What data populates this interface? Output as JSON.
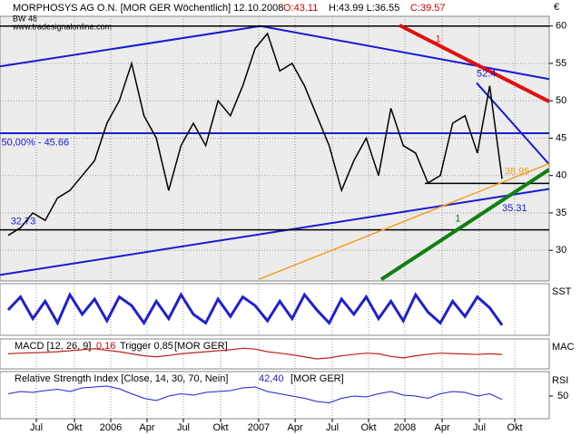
{
  "chart_data": {
    "type": "line",
    "title": "MORPHOSYS AG O.N. [MOR GER  Wöchentlich] 12.10.2008",
    "open": "O:43.11",
    "high_low": "H:43.99 L:36.55",
    "close": "C:39.57",
    "subtitle": "BW 48",
    "source": "www.tradesignalonline.com",
    "currency": "€",
    "values": [
      32,
      33,
      35,
      34,
      37,
      38,
      40,
      42,
      47,
      50,
      55,
      48,
      45,
      38,
      44,
      47,
      44,
      50,
      48,
      52,
      57,
      59,
      54,
      55,
      52,
      48,
      44,
      38,
      42,
      45,
      40,
      49,
      44,
      43,
      39,
      40,
      47,
      48,
      43,
      52,
      39.57
    ],
    "color": "#000000",
    "xlim": [
      -0.66,
      43.82
    ],
    "xticks": [
      {
        "value": 2.28,
        "label": "Jul"
      },
      {
        "value": 5.37,
        "label": "Okt"
      },
      {
        "value": 8.31,
        "label": "2006"
      },
      {
        "value": 11.25,
        "label": "Apr"
      },
      {
        "value": 14.19,
        "label": "Jul"
      },
      {
        "value": 17.21,
        "label": "Okt"
      },
      {
        "value": 20.29,
        "label": "2007"
      },
      {
        "value": 23.24,
        "label": "Apr"
      },
      {
        "value": 26.25,
        "label": "Jul"
      },
      {
        "value": 29.19,
        "label": "Okt"
      },
      {
        "value": 32.13,
        "label": "2008"
      },
      {
        "value": 35.15,
        "label": "Apr"
      },
      {
        "value": 38.16,
        "label": "Jul"
      },
      {
        "value": 41.03,
        "label": "Okt"
      }
    ],
    "ylim": [
      25.9,
      61.3
    ],
    "yticks": [
      30,
      35,
      40,
      45,
      50,
      55,
      60
    ],
    "grid": true,
    "trendlines": [
      {
        "color": "#1a1ad0",
        "points": [
          [
            -0.66,
            54.6
          ],
          [
            20.44,
            60
          ],
          [
            43.82,
            52.9
          ]
        ]
      },
      {
        "color": "#1a1ad0",
        "points": [
          [
            -0.66,
            45.66
          ],
          [
            43.82,
            45.66
          ]
        ]
      },
      {
        "color": "#1a1ad0",
        "points": [
          [
            -0.66,
            26.7
          ],
          [
            43.82,
            38.2
          ]
        ]
      },
      {
        "color": "#1a1ad0",
        "points": [
          [
            37.94,
            52.4
          ],
          [
            43.82,
            41.5
          ]
        ]
      },
      {
        "color": "#000000",
        "points": [
          [
            -0.66,
            60
          ],
          [
            43.82,
            60
          ]
        ]
      },
      {
        "color": "#000000",
        "points": [
          [
            -0.66,
            32.73
          ],
          [
            43.82,
            32.73
          ]
        ]
      },
      {
        "color": "#000000",
        "points": [
          [
            33.75,
            38.95
          ],
          [
            43.82,
            38.95
          ]
        ]
      },
      {
        "color": "#e01010",
        "points": [
          [
            31.69,
            60.1
          ],
          [
            43.82,
            49.9
          ]
        ]
      },
      {
        "color": "#f0a020",
        "points": [
          [
            20.29,
            26.1
          ],
          [
            43.82,
            41.6
          ]
        ]
      },
      {
        "color": "#108010",
        "points": [
          [
            30.22,
            26.1
          ],
          [
            43.82,
            40.8
          ]
        ]
      }
    ],
    "annotations": [
      {
        "text": "52.4",
        "color": "#1a1ad0",
        "at": [
          37.94,
          53.6
        ]
      },
      {
        "text": "50,00% - 45.66",
        "color": "#1a1ad0",
        "at": [
          -0.55,
          44.4
        ]
      },
      {
        "text": "38.95",
        "color": "#f0a020",
        "at": [
          40.2,
          40.5
        ]
      },
      {
        "text": "35.31",
        "color": "#1a1ad0",
        "at": [
          40.0,
          35.6
        ]
      },
      {
        "text": "32.73",
        "color": "#1a1ad0",
        "at": [
          0.2,
          33.8
        ]
      },
      {
        "text": "1",
        "color": "#e01010",
        "at": [
          34.6,
          58.2
        ]
      },
      {
        "text": "1",
        "color": "#108010",
        "at": [
          36.2,
          34.2
        ]
      }
    ],
    "sst": {
      "label": "SST",
      "color": "#2020d0",
      "ylim": [
        0,
        100
      ],
      "values": [
        50,
        80,
        30,
        70,
        20,
        85,
        40,
        75,
        25,
        80,
        60,
        20,
        70,
        30,
        85,
        40,
        20,
        75,
        35,
        80,
        60,
        25,
        70,
        30,
        85,
        50,
        20,
        75,
        40,
        80,
        30,
        70,
        25,
        85,
        45,
        20,
        70,
        35,
        80,
        55,
        15
      ]
    },
    "macd": {
      "label": "MAC",
      "name": "MACD [12, 26, 9]",
      "value": "0,16",
      "trigger": "Trigger 0,85",
      "symbol": "[MOR GER]",
      "color": "#c02020",
      "ylim": [
        -6,
        6
      ],
      "values": [
        0.5,
        0.8,
        1,
        1.2,
        1.5,
        2,
        2.5,
        3,
        2.2,
        1.5,
        0.5,
        -0.5,
        -1,
        -0.3,
        0.5,
        1,
        1.5,
        2,
        2.5,
        3.2,
        2.8,
        1.5,
        0.8,
        0,
        -1,
        -2,
        -1.5,
        -0.5,
        0.2,
        0.8,
        0.5,
        -0.8,
        -1.5,
        -0.5,
        0.3,
        0.8,
        0.6,
        0.4,
        0.2,
        0.5,
        0.16
      ]
    },
    "rsi": {
      "label": "RSI",
      "name": "Relative Strength Index [Close, 14, 30, 70, Nein]",
      "value": "42,40",
      "symbol": "[MOR GER]",
      "color": "#2020d0",
      "ylim": [
        0,
        100
      ],
      "yticks": [
        50
      ],
      "values": [
        55,
        60,
        58,
        62,
        65,
        60,
        68,
        70,
        72,
        66,
        55,
        45,
        40,
        50,
        55,
        52,
        58,
        60,
        62,
        68,
        70,
        60,
        55,
        50,
        45,
        38,
        35,
        45,
        50,
        48,
        55,
        60,
        52,
        50,
        45,
        55,
        60,
        58,
        50,
        55,
        42.4
      ]
    }
  }
}
